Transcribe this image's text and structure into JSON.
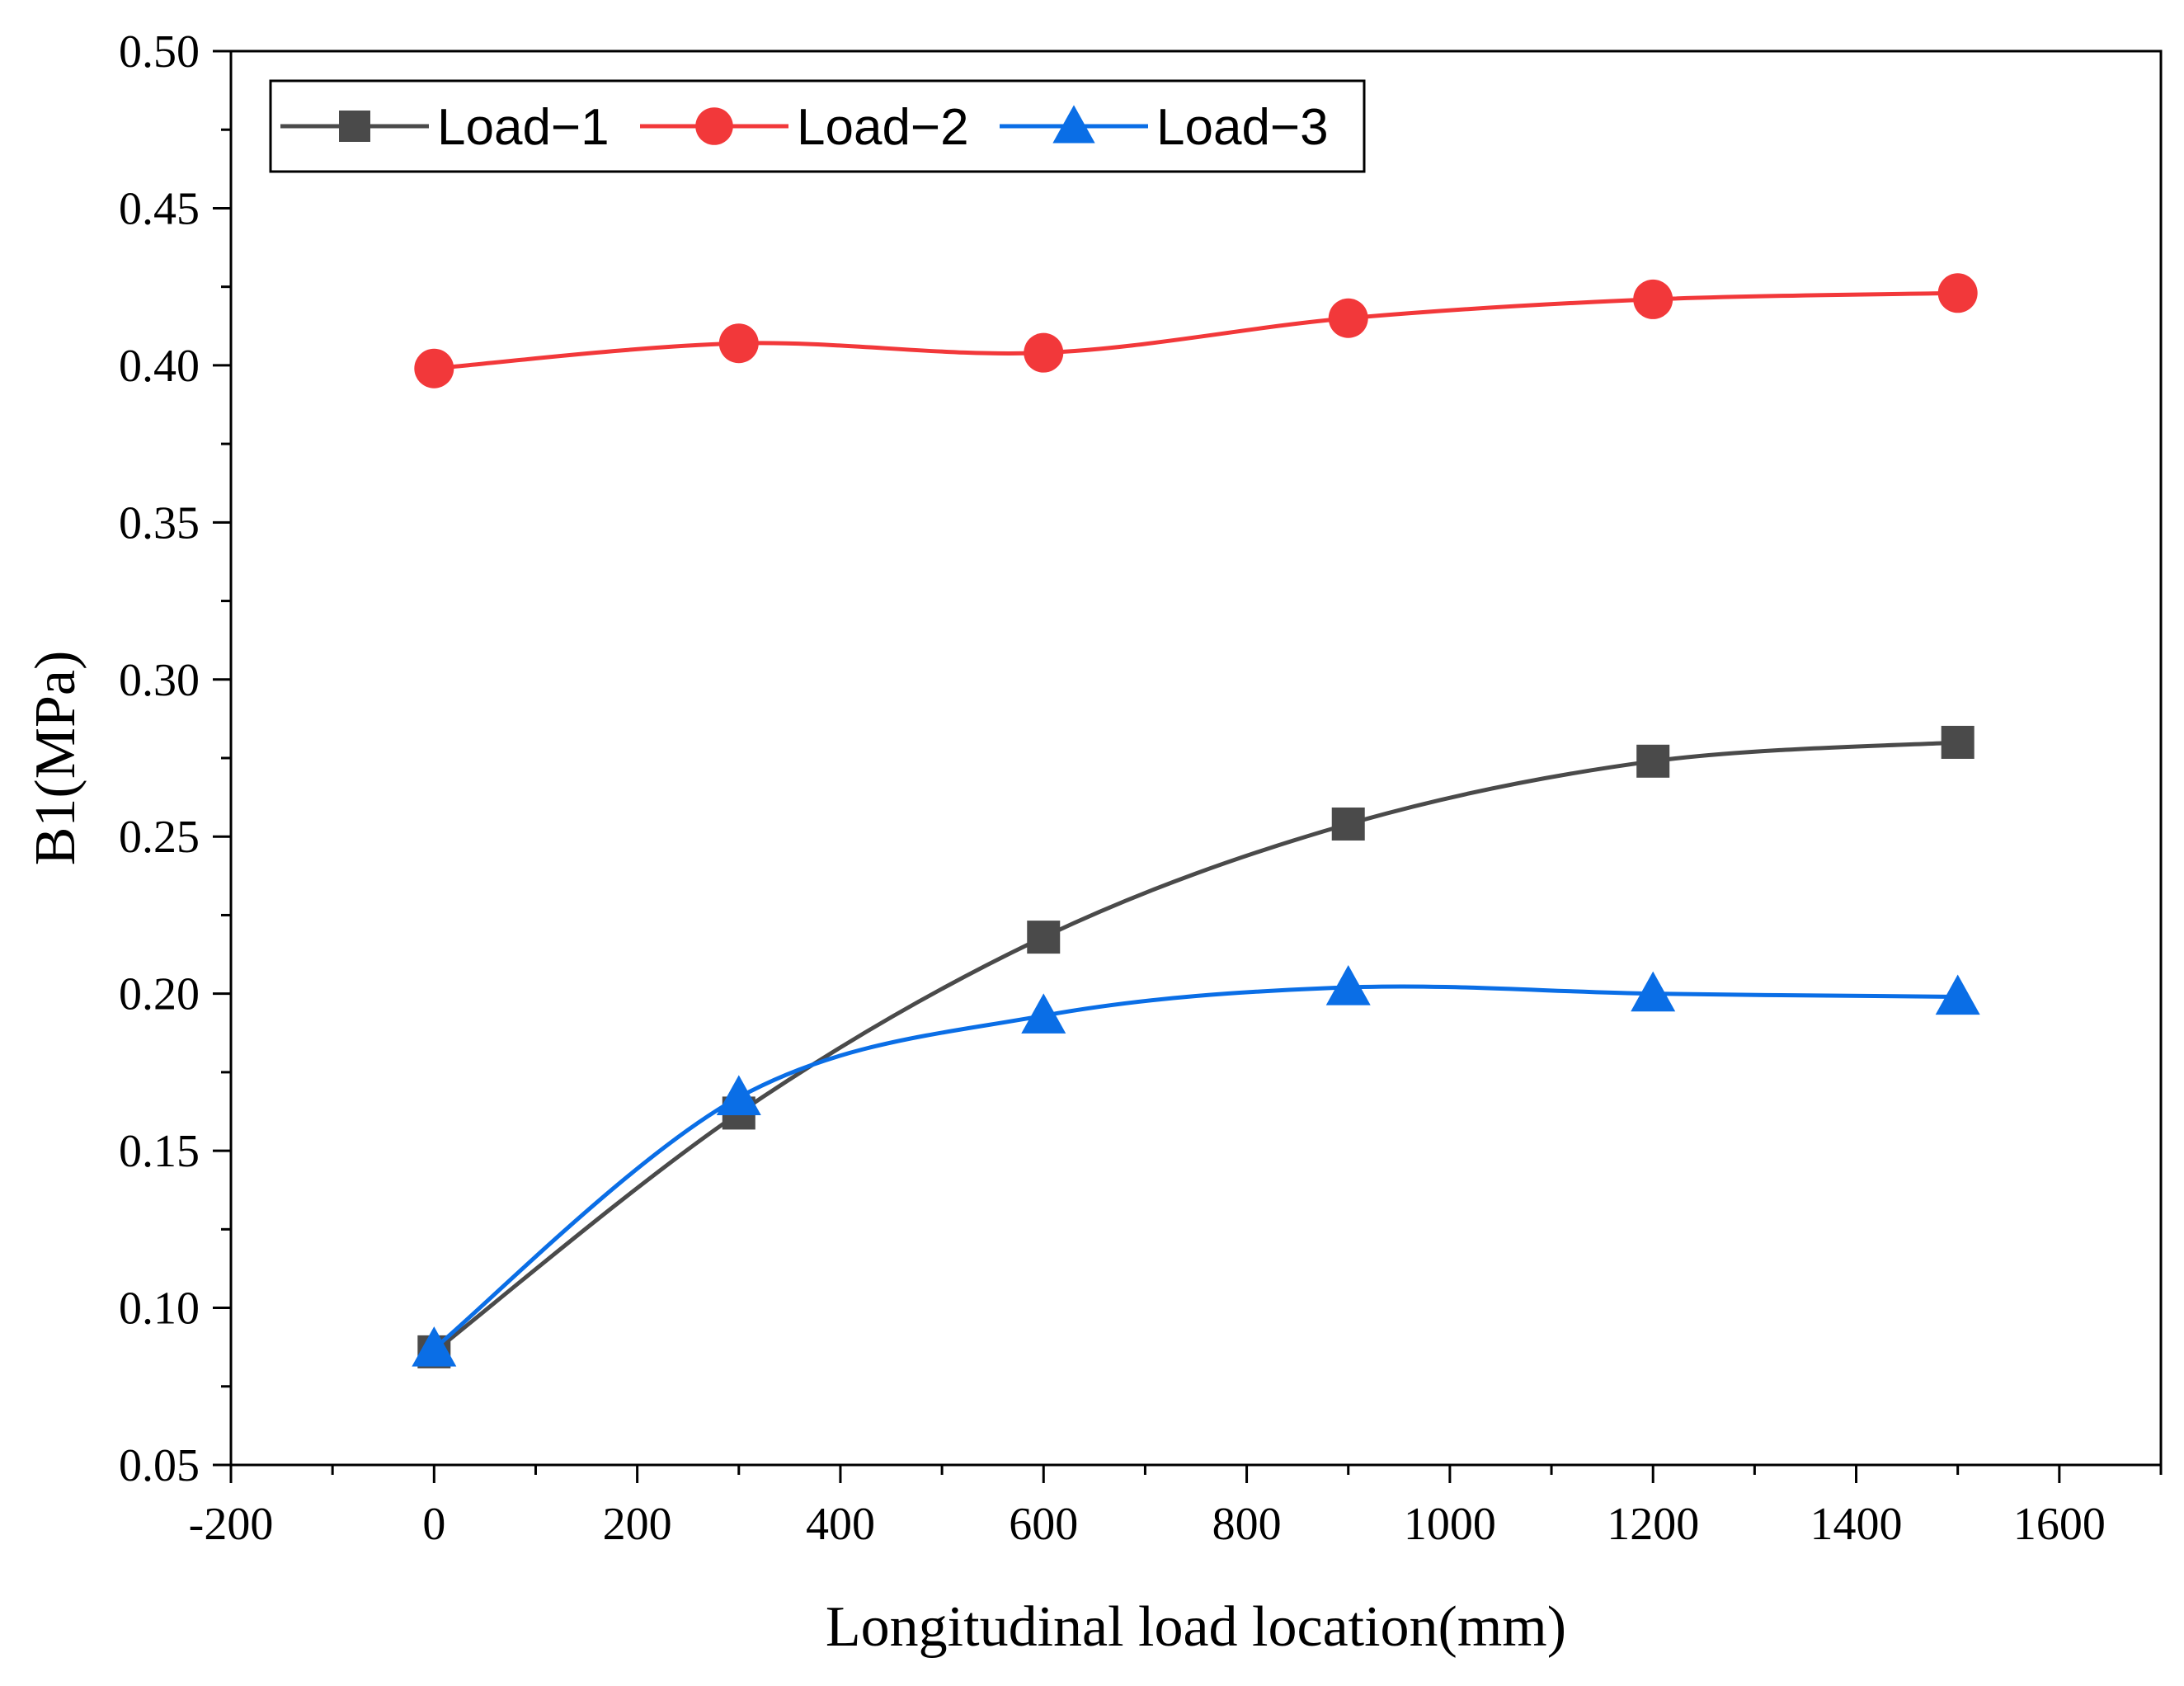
{
  "chart_data": {
    "type": "line",
    "title": "",
    "xlabel": "Longitudinal load location(mm)",
    "ylabel": "B1(MPa)",
    "xlim": [
      -200,
      1700
    ],
    "ylim": [
      0.05,
      0.5
    ],
    "x_ticks": [
      "-200",
      "0",
      "200",
      "400",
      "600",
      "800",
      "1000",
      "1200",
      "1400",
      "1600"
    ],
    "x_tick_values": [
      -200,
      0,
      200,
      400,
      600,
      800,
      1000,
      1200,
      1400,
      1600
    ],
    "y_ticks": [
      "0.05",
      "0.10",
      "0.15",
      "0.20",
      "0.25",
      "0.30",
      "0.35",
      "0.40",
      "0.45",
      "0.50"
    ],
    "y_tick_values": [
      0.05,
      0.1,
      0.15,
      0.2,
      0.25,
      0.3,
      0.35,
      0.4,
      0.45,
      0.5
    ],
    "grid": false,
    "legend_position": "top-left",
    "x": [
      0,
      300,
      600,
      900,
      1200,
      1500
    ],
    "series": [
      {
        "name": "Load−1",
        "marker": "square",
        "color": "#4a4a4a",
        "values": [
          0.086,
          0.162,
          0.218,
          0.254,
          0.274,
          0.28
        ]
      },
      {
        "name": "Load−2",
        "marker": "circle",
        "color": "#f2383a",
        "values": [
          0.399,
          0.407,
          0.404,
          0.415,
          0.421,
          0.423
        ]
      },
      {
        "name": "Load−3",
        "marker": "triangle",
        "color": "#0a6ee6",
        "values": [
          0.087,
          0.167,
          0.193,
          0.202,
          0.2,
          0.199
        ]
      }
    ]
  }
}
